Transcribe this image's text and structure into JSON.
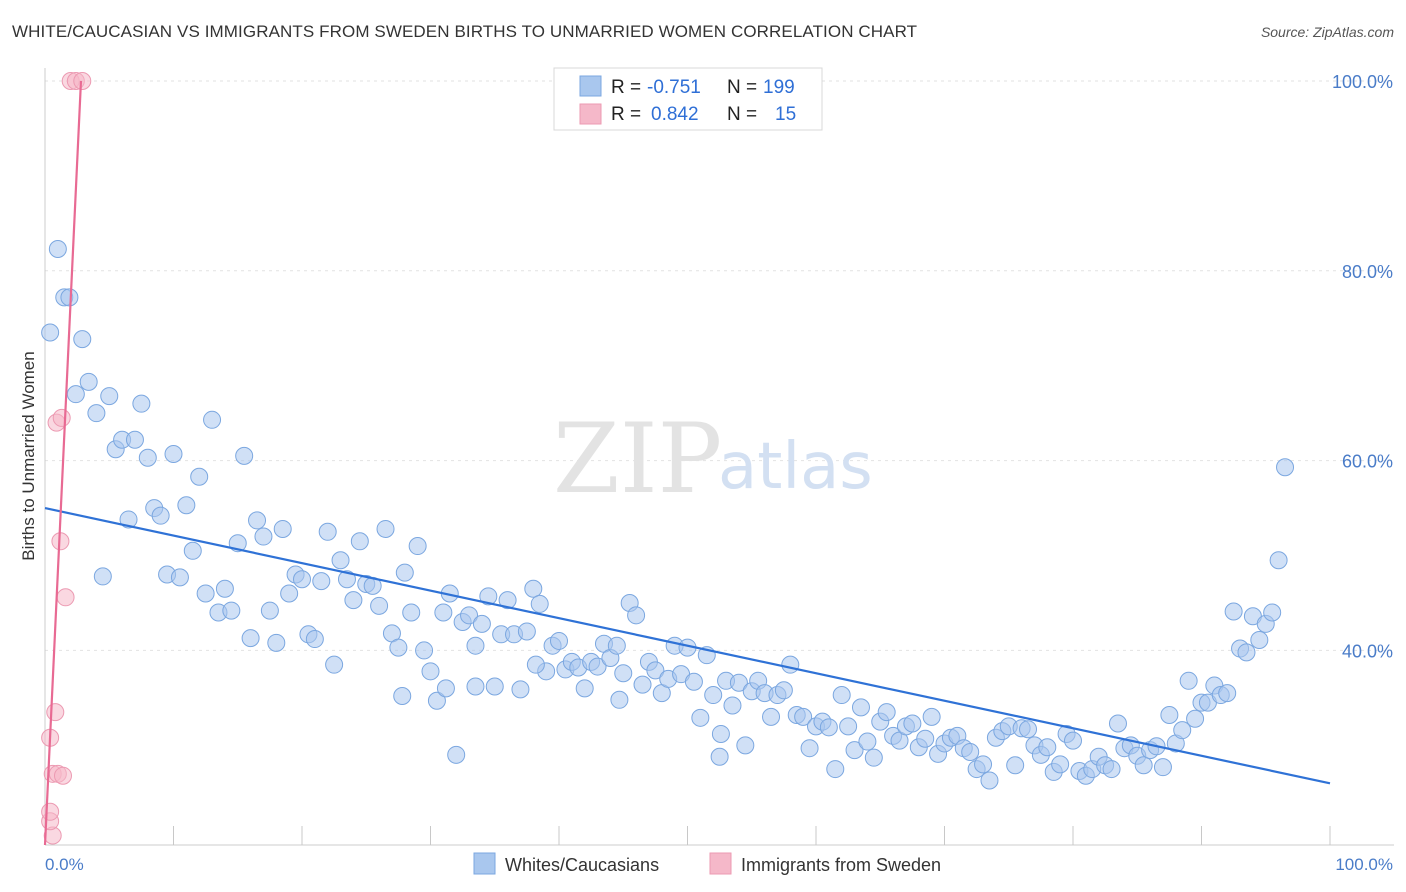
{
  "header": {
    "title": "WHITE/CAUCASIAN VS IMMIGRANTS FROM SWEDEN BIRTHS TO UNMARRIED WOMEN CORRELATION CHART",
    "source": "Source: ZipAtlas.com"
  },
  "watermark": {
    "zip": "ZIP",
    "atlas": "atlas"
  },
  "legend": {
    "rows": [
      {
        "r_label": "R =",
        "r_value": "-0.751",
        "n_label": "N =",
        "n_value": "199",
        "color": "#a9c7ee"
      },
      {
        "r_label": "R =",
        "r_value": "0.842",
        "n_label": "N =",
        "n_value": "15",
        "color": "#f5b8c9"
      }
    ]
  },
  "bottom_legend": {
    "items": [
      {
        "label": "Whites/Caucasians",
        "color": "#a9c7ee"
      },
      {
        "label": "Immigrants from Sweden",
        "color": "#f5b8c9"
      }
    ]
  },
  "chart_data": {
    "type": "scatter",
    "title": "WHITE/CAUCASIAN VS IMMIGRANTS FROM SWEDEN BIRTHS TO UNMARRIED WOMEN CORRELATION CHART",
    "xlabel": "",
    "ylabel": "Births to Unmarried Women",
    "xlim": [
      0,
      100
    ],
    "ylim": [
      19.5,
      102
    ],
    "x_tick_labels": [
      "0.0%",
      "100.0%"
    ],
    "y_ticks": [
      40,
      60,
      80,
      100
    ],
    "y_tick_labels": [
      "40.0%",
      "60.0%",
      "80.0%",
      "100.0%"
    ],
    "grid": true,
    "legend_position": "top-center",
    "series": [
      {
        "name": "Whites/Caucasians",
        "color": "#a9c7ee",
        "stroke": "#7ba7e0",
        "trend": {
          "x": [
            0,
            100
          ],
          "y": [
            55.0,
            26.0
          ],
          "color": "#2f72d6"
        },
        "points": [
          [
            0.4,
            73.5
          ],
          [
            1.0,
            82.3
          ],
          [
            1.5,
            77.2
          ],
          [
            1.9,
            77.2
          ],
          [
            2.4,
            67.0
          ],
          [
            2.9,
            72.8
          ],
          [
            3.4,
            68.3
          ],
          [
            4.0,
            65.0
          ],
          [
            4.5,
            47.8
          ],
          [
            5.0,
            66.8
          ],
          [
            5.5,
            61.2
          ],
          [
            6.0,
            62.2
          ],
          [
            6.5,
            53.8
          ],
          [
            7.0,
            62.2
          ],
          [
            7.5,
            66.0
          ],
          [
            8.0,
            60.3
          ],
          [
            8.5,
            55.0
          ],
          [
            9.0,
            54.2
          ],
          [
            9.5,
            48.0
          ],
          [
            10.0,
            60.7
          ],
          [
            10.5,
            47.7
          ],
          [
            11.0,
            55.3
          ],
          [
            11.5,
            50.5
          ],
          [
            12.0,
            58.3
          ],
          [
            12.5,
            46.0
          ],
          [
            13.0,
            64.3
          ],
          [
            13.5,
            44.0
          ],
          [
            14.0,
            46.5
          ],
          [
            14.5,
            44.2
          ],
          [
            15.0,
            51.3
          ],
          [
            15.5,
            60.5
          ],
          [
            16.0,
            41.3
          ],
          [
            16.5,
            53.7
          ],
          [
            17.0,
            52.0
          ],
          [
            17.5,
            44.2
          ],
          [
            18.0,
            40.8
          ],
          [
            18.5,
            52.8
          ],
          [
            19.0,
            46.0
          ],
          [
            19.5,
            48.0
          ],
          [
            20.0,
            47.5
          ],
          [
            20.5,
            41.7
          ],
          [
            21.0,
            41.2
          ],
          [
            21.5,
            47.3
          ],
          [
            22.0,
            52.5
          ],
          [
            22.5,
            38.5
          ],
          [
            23.0,
            49.5
          ],
          [
            23.5,
            47.5
          ],
          [
            24.0,
            45.3
          ],
          [
            24.5,
            51.5
          ],
          [
            25.0,
            47.0
          ],
          [
            25.5,
            46.8
          ],
          [
            26.0,
            44.7
          ],
          [
            26.5,
            52.8
          ],
          [
            27.0,
            41.8
          ],
          [
            27.5,
            40.3
          ],
          [
            28.0,
            48.2
          ],
          [
            28.5,
            44.0
          ],
          [
            29.0,
            51.0
          ],
          [
            29.5,
            40.0
          ],
          [
            30.0,
            37.8
          ],
          [
            30.5,
            34.7
          ],
          [
            31.0,
            44.0
          ],
          [
            31.5,
            46.0
          ],
          [
            32.0,
            29.0
          ],
          [
            32.5,
            43.0
          ],
          [
            33.0,
            43.7
          ],
          [
            33.5,
            40.5
          ],
          [
            34.0,
            42.8
          ],
          [
            34.5,
            45.7
          ],
          [
            35.0,
            36.2
          ],
          [
            35.5,
            41.7
          ],
          [
            36.0,
            45.3
          ],
          [
            36.5,
            41.7
          ],
          [
            37.0,
            35.9
          ],
          [
            37.5,
            42.0
          ],
          [
            38.0,
            46.5
          ],
          [
            38.5,
            44.9
          ],
          [
            39.0,
            37.8
          ],
          [
            39.5,
            40.5
          ],
          [
            40.0,
            41.0
          ],
          [
            40.5,
            38.0
          ],
          [
            41.0,
            38.8
          ],
          [
            41.5,
            38.2
          ],
          [
            42.0,
            36.0
          ],
          [
            42.5,
            38.8
          ],
          [
            43.0,
            38.3
          ],
          [
            43.5,
            40.7
          ],
          [
            44.0,
            39.2
          ],
          [
            44.5,
            40.5
          ],
          [
            45.0,
            37.6
          ],
          [
            45.5,
            45.0
          ],
          [
            46.0,
            43.7
          ],
          [
            46.5,
            36.4
          ],
          [
            47.0,
            38.8
          ],
          [
            47.5,
            37.9
          ],
          [
            48.0,
            35.5
          ],
          [
            48.5,
            37.0
          ],
          [
            49.0,
            40.5
          ],
          [
            49.5,
            37.5
          ],
          [
            50.0,
            40.3
          ],
          [
            50.5,
            36.7
          ],
          [
            51.0,
            32.9
          ],
          [
            51.5,
            39.5
          ],
          [
            52.0,
            35.3
          ],
          [
            52.5,
            28.8
          ],
          [
            53.0,
            36.8
          ],
          [
            53.5,
            34.2
          ],
          [
            54.0,
            36.6
          ],
          [
            54.5,
            30.0
          ],
          [
            55.0,
            35.7
          ],
          [
            55.5,
            36.8
          ],
          [
            56.0,
            35.5
          ],
          [
            56.5,
            33.0
          ],
          [
            57.0,
            35.3
          ],
          [
            57.5,
            35.8
          ],
          [
            58.0,
            38.5
          ],
          [
            58.5,
            33.2
          ],
          [
            59.0,
            33.0
          ],
          [
            59.5,
            29.7
          ],
          [
            60.0,
            32.0
          ],
          [
            60.5,
            32.5
          ],
          [
            61.0,
            31.9
          ],
          [
            61.5,
            27.5
          ],
          [
            62.0,
            35.3
          ],
          [
            62.5,
            32.0
          ],
          [
            63.0,
            29.5
          ],
          [
            63.5,
            34.0
          ],
          [
            64.0,
            30.4
          ],
          [
            64.5,
            28.7
          ],
          [
            65.0,
            32.5
          ],
          [
            65.5,
            33.5
          ],
          [
            66.0,
            31.0
          ],
          [
            66.5,
            30.5
          ],
          [
            67.0,
            32.0
          ],
          [
            67.5,
            32.3
          ],
          [
            68.0,
            29.8
          ],
          [
            68.5,
            30.7
          ],
          [
            69.0,
            33.0
          ],
          [
            69.5,
            29.1
          ],
          [
            70.0,
            30.2
          ],
          [
            70.5,
            30.8
          ],
          [
            71.0,
            31.0
          ],
          [
            71.5,
            29.7
          ],
          [
            72.0,
            29.3
          ],
          [
            72.5,
            27.5
          ],
          [
            73.0,
            28.0
          ],
          [
            73.5,
            26.3
          ],
          [
            74.0,
            30.8
          ],
          [
            74.5,
            31.5
          ],
          [
            75.0,
            32.0
          ],
          [
            75.5,
            27.9
          ],
          [
            76.0,
            31.8
          ],
          [
            76.5,
            31.7
          ],
          [
            77.0,
            30.0
          ],
          [
            77.5,
            29.0
          ],
          [
            78.0,
            29.8
          ],
          [
            78.5,
            27.2
          ],
          [
            79.0,
            28.0
          ],
          [
            79.5,
            31.2
          ],
          [
            80.0,
            30.5
          ],
          [
            80.5,
            27.3
          ],
          [
            81.0,
            26.8
          ],
          [
            81.5,
            27.5
          ],
          [
            82.0,
            28.8
          ],
          [
            82.5,
            27.9
          ],
          [
            83.0,
            27.5
          ],
          [
            83.5,
            32.3
          ],
          [
            84.0,
            29.7
          ],
          [
            84.5,
            30.0
          ],
          [
            85.0,
            28.9
          ],
          [
            85.5,
            27.9
          ],
          [
            86.0,
            29.5
          ],
          [
            86.5,
            29.9
          ],
          [
            87.0,
            27.7
          ],
          [
            87.5,
            33.2
          ],
          [
            88.0,
            30.2
          ],
          [
            88.5,
            31.6
          ],
          [
            89.0,
            36.8
          ],
          [
            89.5,
            32.8
          ],
          [
            90.0,
            34.5
          ],
          [
            90.5,
            34.5
          ],
          [
            91.0,
            36.3
          ],
          [
            91.5,
            35.3
          ],
          [
            92.0,
            35.5
          ],
          [
            92.5,
            44.1
          ],
          [
            93.0,
            40.2
          ],
          [
            93.5,
            39.8
          ],
          [
            94.0,
            43.6
          ],
          [
            94.5,
            41.1
          ],
          [
            95.0,
            42.8
          ],
          [
            95.5,
            44.0
          ],
          [
            96.0,
            49.5
          ],
          [
            96.5,
            59.3
          ],
          [
            33.5,
            36.2
          ],
          [
            31.2,
            36.0
          ],
          [
            27.8,
            35.2
          ],
          [
            38.2,
            38.5
          ],
          [
            44.7,
            34.8
          ],
          [
            52.6,
            31.2
          ]
        ]
      },
      {
        "name": "Immigrants from Sweden",
        "color": "#f5b8c9",
        "stroke": "#ec9ab2",
        "trend": {
          "x": [
            0,
            2.8
          ],
          "y": [
            19.5,
            100.0
          ],
          "color": "#e86a93"
        },
        "points": [
          [
            0.4,
            30.8
          ],
          [
            0.6,
            20.5
          ],
          [
            0.4,
            22.0
          ],
          [
            0.4,
            23.0
          ],
          [
            0.6,
            27.0
          ],
          [
            1.0,
            27.0
          ],
          [
            1.4,
            26.8
          ],
          [
            0.8,
            33.5
          ],
          [
            1.2,
            51.5
          ],
          [
            1.6,
            45.6
          ],
          [
            0.9,
            64.0
          ],
          [
            1.3,
            64.5
          ],
          [
            2.0,
            100.0
          ],
          [
            2.4,
            100.0
          ],
          [
            2.9,
            100.0
          ]
        ]
      }
    ]
  }
}
